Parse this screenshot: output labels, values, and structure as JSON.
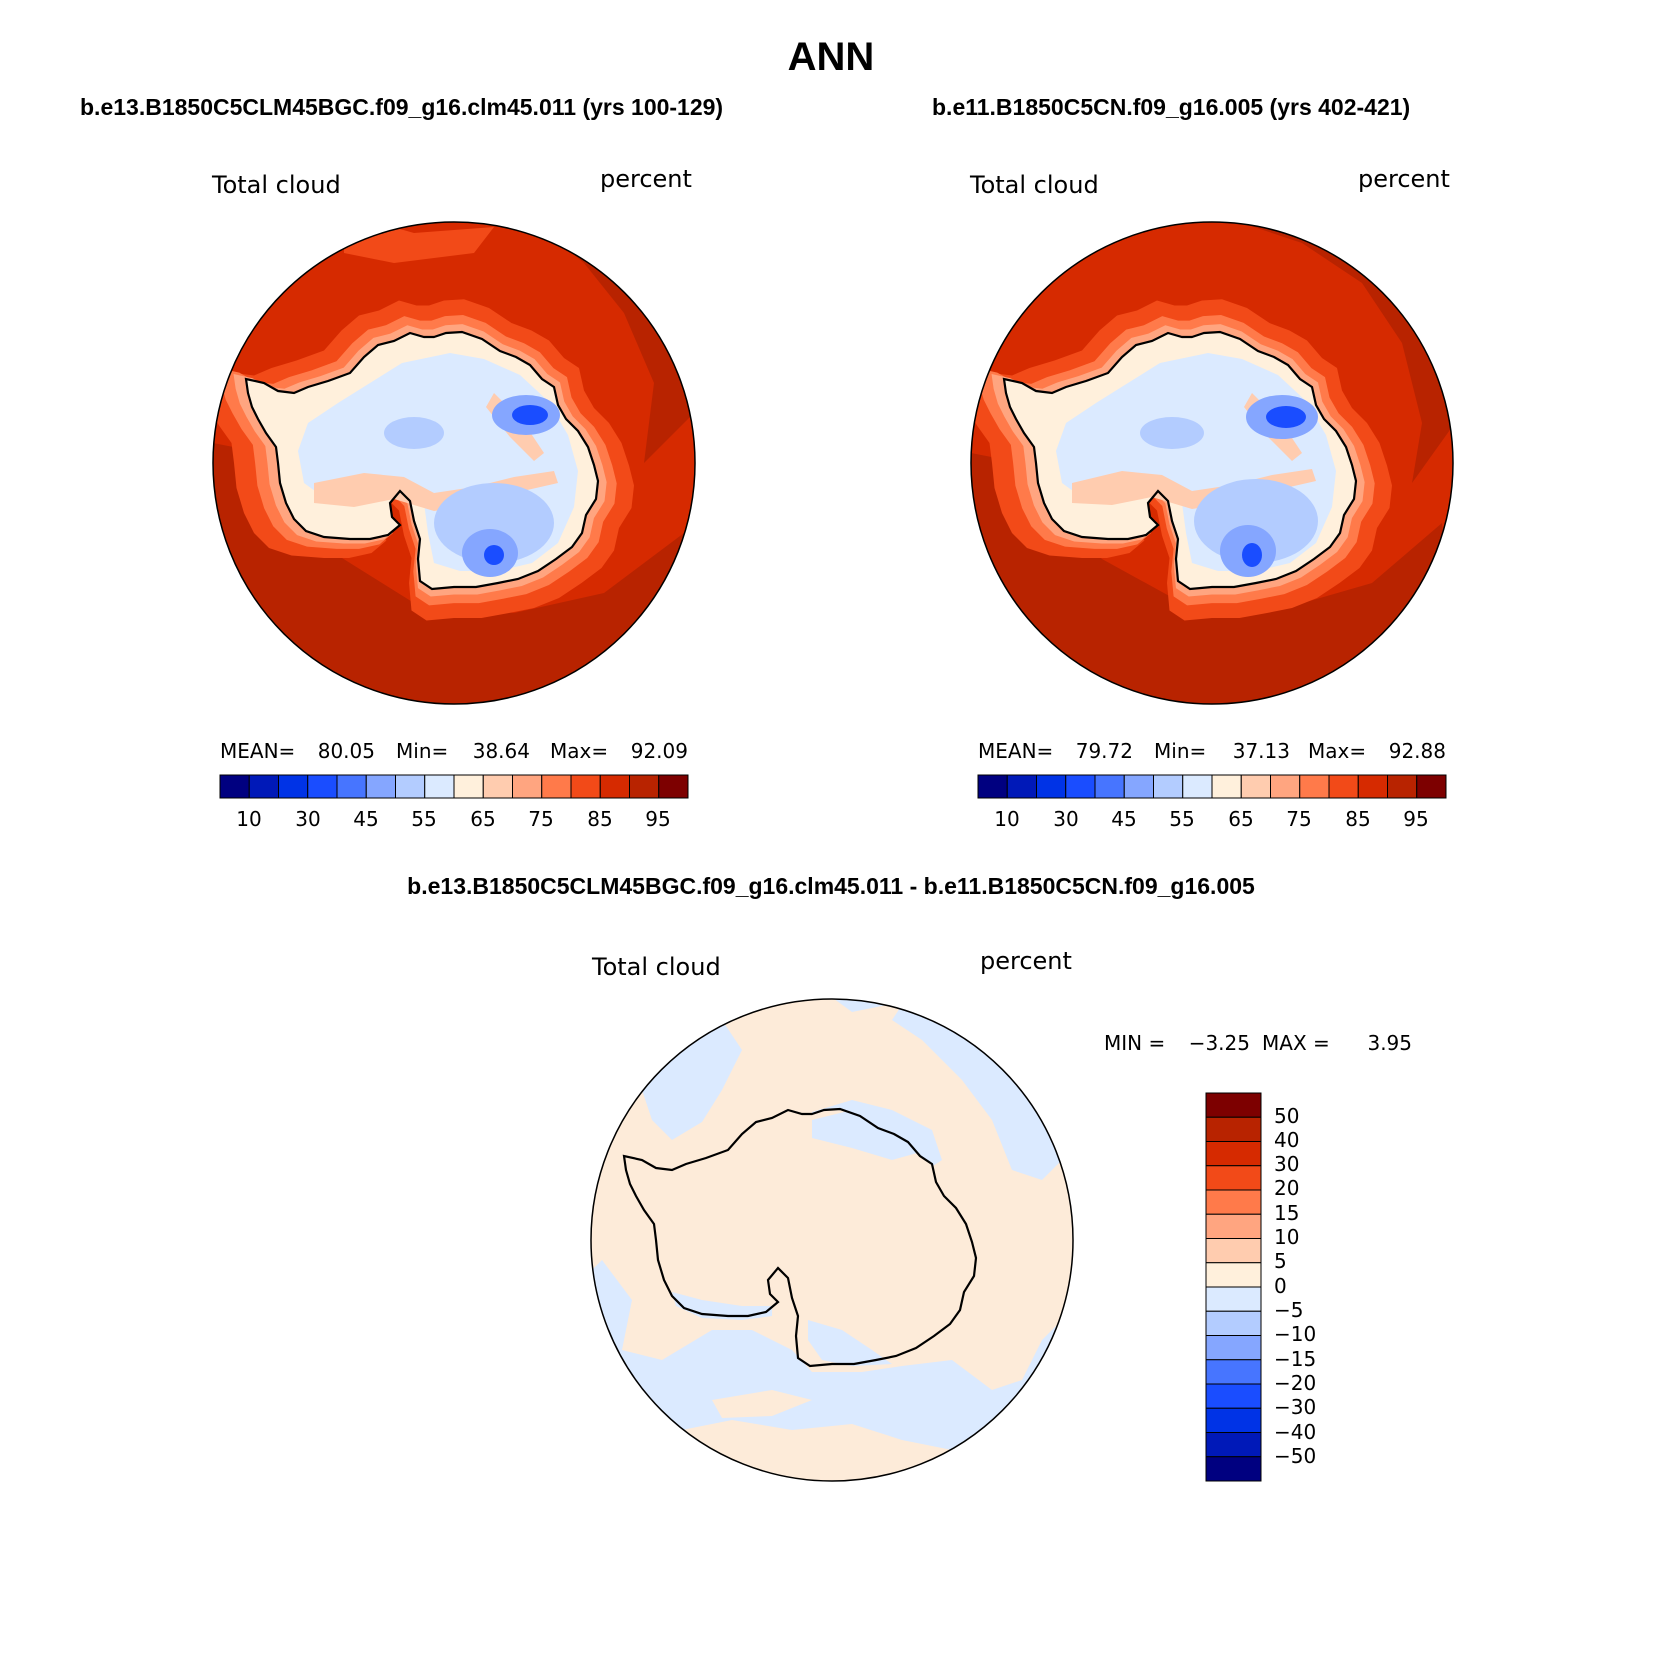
{
  "figure": {
    "title": "ANN"
  },
  "panels": [
    {
      "case_title": "b.e13.B1850C5CLM45BGC.f09_g16.clm45.011 (yrs 100-129)",
      "variable": "Total cloud",
      "units": "percent",
      "stats": {
        "mean_label": "MEAN=",
        "mean": "80.05",
        "min_label": "Min=",
        "min": "38.64",
        "max_label": "Max=",
        "max": "92.09"
      },
      "colorbar_ticks": [
        "10",
        "30",
        "45",
        "55",
        "65",
        "75",
        "85",
        "95"
      ]
    },
    {
      "case_title": "b.e11.B1850C5CN.f09_g16.005 (yrs 402-421)",
      "variable": "Total cloud",
      "units": "percent",
      "stats": {
        "mean_label": "MEAN=",
        "mean": "79.72",
        "min_label": "Min=",
        "min": "37.13",
        "max_label": "Max=",
        "max": "92.88"
      },
      "colorbar_ticks": [
        "10",
        "30",
        "45",
        "55",
        "65",
        "75",
        "85",
        "95"
      ]
    }
  ],
  "difference": {
    "title": "b.e13.B1850C5CLM45BGC.f09_g16.clm45.011 - b.e11.B1850C5CN.f09_g16.005",
    "variable": "Total cloud",
    "units": "percent",
    "min_label": "MIN =",
    "min": "−3.25",
    "max_label": "MAX =",
    "max": "3.95",
    "colorbar_ticks": [
      "50",
      "40",
      "30",
      "20",
      "15",
      "10",
      "5",
      "0",
      "−5",
      "−10",
      "−15",
      "−20",
      "−30",
      "−40",
      "−50"
    ]
  },
  "colors": {
    "abs_scale": [
      "#000080",
      "#0019b8",
      "#0033e6",
      "#1a4dff",
      "#4775ff",
      "#85a6ff",
      "#b3ccff",
      "#dbeaff",
      "#fff0dc",
      "#ffccaf",
      "#ffa580",
      "#ff7a4a",
      "#f24a18",
      "#d62a00",
      "#b82300",
      "#7d0000"
    ],
    "diff_scale": [
      "#7d0000",
      "#b82300",
      "#d62a00",
      "#f24a18",
      "#ff7a4a",
      "#ffa580",
      "#ffccaf",
      "#fff0dc",
      "#dbeaff",
      "#b3ccff",
      "#85a6ff",
      "#4775ff",
      "#1a4dff",
      "#0033e6",
      "#0019b8",
      "#000080"
    ],
    "ocean_dark": "#b82300",
    "ocean_mid": "#d62a00",
    "ocean_light": "#f24a18",
    "diff_positive": "#fdebd9",
    "diff_negative": "#dbeaff"
  }
}
